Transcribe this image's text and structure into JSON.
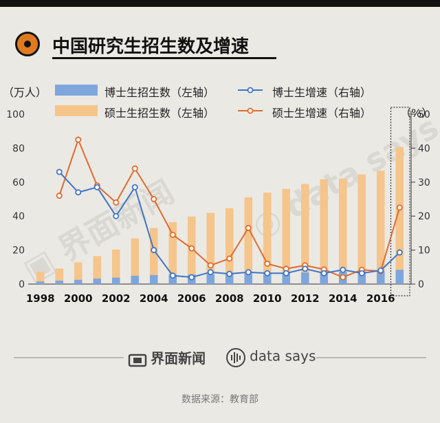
{
  "title": "中国研究生招生数及增速",
  "source_text": "数据来源：教育部",
  "footer": {
    "brand_cn": "界面新闻",
    "brand_en": "data says"
  },
  "colors": {
    "phd_bar": "#7ea6dc",
    "master_bar": "#f5c58b",
    "phd_line": "#3f74c6",
    "master_line": "#e36a2b",
    "accent": "#e07a1f"
  },
  "chart_data": {
    "type": "bar",
    "y_left_unit": "（万人）",
    "y_right_unit": "（%）",
    "y_left_ticks": [
      0,
      20,
      40,
      60,
      80,
      100
    ],
    "y_right_ticks": [
      0,
      10,
      20,
      30,
      40,
      50
    ],
    "ylim_left": [
      0,
      100
    ],
    "ylim_right": [
      0,
      50
    ],
    "x_tick_labels": [
      "1998",
      "2000",
      "2002",
      "2004",
      "2006",
      "2008",
      "2010",
      "2012",
      "2014",
      "2016"
    ],
    "categories": [
      "1998",
      "1999",
      "2000",
      "2001",
      "2002",
      "2003",
      "2004",
      "2005",
      "2006",
      "2007",
      "2008",
      "2009",
      "2010",
      "2011",
      "2012",
      "2013",
      "2014",
      "2015",
      "2016",
      "2017"
    ],
    "highlight_category": "2017",
    "series": [
      {
        "name": "博士生招生数（左轴）",
        "kind": "bar",
        "axis": "left",
        "values": [
          1.5,
          2.0,
          2.5,
          3.2,
          3.8,
          4.9,
          5.3,
          5.5,
          5.6,
          5.8,
          6.0,
          6.2,
          6.4,
          6.6,
          6.8,
          7.0,
          7.2,
          7.4,
          7.7,
          8.4
        ]
      },
      {
        "name": "硕士生招生数（左轴）",
        "kind": "bar",
        "axis": "left",
        "values": [
          7.2,
          9.2,
          12.8,
          16.5,
          20.3,
          26.9,
          33.0,
          36.5,
          39.7,
          41.9,
          44.6,
          51.1,
          53.8,
          56.0,
          58.9,
          61.7,
          62.1,
          64.5,
          66.7,
          80.6
        ]
      },
      {
        "name": "博士生增速（右轴）",
        "kind": "line",
        "axis": "right",
        "values": [
          null,
          33,
          27,
          28.5,
          20,
          28.5,
          10,
          2.5,
          2,
          3.5,
          3,
          3.5,
          3.2,
          3.2,
          4.5,
          3.2,
          4.2,
          3.2,
          4,
          9.3
        ]
      },
      {
        "name": "硕士生增速（右轴）",
        "kind": "line",
        "axis": "right",
        "values": [
          null,
          26,
          42.5,
          29,
          24,
          34,
          25,
          14.5,
          10.5,
          5.5,
          7.5,
          16.5,
          6,
          4.5,
          5.5,
          4.3,
          2,
          4.2,
          3.8,
          22.5
        ]
      }
    ]
  }
}
